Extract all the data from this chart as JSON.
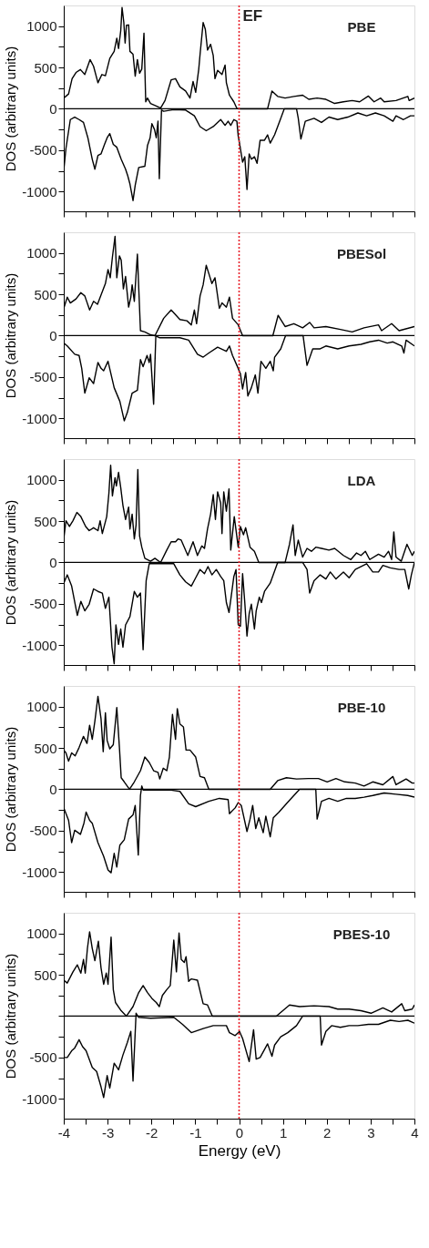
{
  "chart_data": [
    {
      "type": "line",
      "ylabel": "DOS (arbitrary units)",
      "annotations": [
        "PBE"
      ],
      "tick_labels": "y",
      "xlim": [
        -4,
        4
      ],
      "ylim": [
        -1240,
        1250
      ],
      "xticks": [
        {
          "value": -4,
          "label": null
        },
        {
          "value": -3.5,
          "label": null
        },
        {
          "value": -3,
          "label": null
        },
        {
          "value": -2.5,
          "label": null
        },
        {
          "value": -2,
          "label": null
        },
        {
          "value": -1.5,
          "label": null
        },
        {
          "value": -1,
          "label": null
        },
        {
          "value": -0.5,
          "label": null
        },
        {
          "value": 0,
          "label": null
        },
        {
          "value": 0.5,
          "label": null
        },
        {
          "value": 1,
          "label": null
        },
        {
          "value": 1.5,
          "label": null
        },
        {
          "value": 2,
          "label": null
        },
        {
          "value": 2.5,
          "label": null
        },
        {
          "value": 3,
          "label": null
        },
        {
          "value": 3.5,
          "label": null
        },
        {
          "value": 4,
          "label": null
        }
      ],
      "yticks": [
        -1000,
        {
          "value": -750,
          "label": null
        },
        -500,
        {
          "value": -250,
          "label": null
        },
        0,
        {
          "value": 250,
          "label": null
        },
        500,
        {
          "value": 750,
          "label": null
        },
        1000
      ],
      "ref_lines": [
        {
          "axis": "y",
          "value": 0,
          "color": "#000000",
          "line_style": "solid"
        },
        {
          "axis": "x",
          "value": 0,
          "label": "EF",
          "color": "#e8202a",
          "line_style": "dotted"
        }
      ],
      "series": [
        {
          "color": "#000000",
          "x": [
            -4,
            -3.89,
            -3.81,
            -3.72,
            -3.62,
            -3.52,
            -3.4,
            -3.32,
            -3.22,
            -3.13,
            -3.05,
            -2.95,
            -2.85,
            -2.79,
            -2.75,
            -2.7,
            -2.67,
            -2.63,
            -2.6,
            -2.57,
            -2.52,
            -2.49,
            -2.42,
            -2.37,
            -2.32,
            -2.27,
            -2.22,
            -2.17,
            -2.13,
            -2.09,
            -2.02,
            -1.89,
            -1.79,
            -1.69,
            -1.55,
            -1.45,
            -1.35,
            -1.22,
            -1.12,
            -1.05,
            -0.99,
            -0.92,
            -0.89,
            -0.82,
            -0.77,
            -0.72,
            -0.65,
            -0.59,
            -0.55,
            -0.49,
            -0.39,
            -0.32,
            -0.29,
            -0.22,
            -0.12,
            -0.05,
            -0.02,
            0.65,
            0.75,
            0.88,
            1.05,
            1.25,
            1.45,
            1.59,
            1.78,
            1.98,
            2.18,
            2.38,
            2.58,
            2.75,
            2.95,
            3.08,
            3.23,
            3.31,
            3.58,
            3.85,
            3.88,
            4
          ],
          "values": [
            130,
            180,
            365,
            440,
            475,
            415,
            595,
            515,
            315,
            415,
            400,
            610,
            695,
            855,
            730,
            945,
            1225,
            1045,
            795,
            1010,
            1015,
            695,
            660,
            395,
            595,
            430,
            480,
            915,
            85,
            130,
            65,
            35,
            10,
            100,
            350,
            365,
            265,
            215,
            130,
            330,
            200,
            480,
            660,
            1045,
            960,
            710,
            780,
            645,
            365,
            465,
            415,
            530,
            315,
            165,
            85,
            5,
            0,
            0,
            215,
            150,
            130,
            150,
            165,
            115,
            130,
            115,
            65,
            85,
            100,
            85,
            155,
            85,
            130,
            85,
            100,
            150,
            100,
            130
          ]
        },
        {
          "color": "#000000",
          "x": [
            -4,
            -3.95,
            -3.85,
            -3.75,
            -3.65,
            -3.55,
            -3.45,
            -3.35,
            -3.29,
            -3.22,
            -3.15,
            -3.07,
            -3.01,
            -2.95,
            -2.87,
            -2.79,
            -2.69,
            -2.59,
            -2.54,
            -2.49,
            -2.42,
            -2.37,
            -2.29,
            -2.15,
            -2.09,
            -2.03,
            -1.99,
            -1.93,
            -1.89,
            -1.85,
            -1.82,
            -1.77,
            -1.72,
            -1.49,
            -1.22,
            -1.02,
            -0.89,
            -0.75,
            -0.59,
            -0.42,
            -0.32,
            -0.25,
            -0.19,
            -0.12,
            -0.05,
            -0.02,
            0.01,
            0.08,
            0.13,
            0.18,
            0.23,
            0.28,
            0.35,
            0.41,
            0.48,
            0.58,
            0.65,
            0.71,
            0.81,
            0.95,
            1.03,
            1.31,
            1.35,
            1.41,
            1.51,
            1.71,
            1.88,
            2.05,
            2.25,
            2.48,
            2.71,
            2.91,
            3.11,
            3.31,
            3.51,
            3.58,
            3.75,
            3.91,
            4
          ],
          "values": [
            -745,
            -480,
            -130,
            -100,
            -130,
            -165,
            -350,
            -610,
            -730,
            -565,
            -545,
            -430,
            -350,
            -300,
            -430,
            -465,
            -610,
            -730,
            -810,
            -910,
            -1110,
            -925,
            -710,
            -695,
            -445,
            -350,
            -180,
            -250,
            -350,
            -150,
            -845,
            -15,
            -30,
            -10,
            -15,
            -85,
            -215,
            -265,
            -215,
            -130,
            -200,
            -150,
            -200,
            -130,
            -150,
            -330,
            -415,
            -645,
            -580,
            -975,
            -545,
            -610,
            -580,
            -660,
            -380,
            -380,
            -315,
            -415,
            -315,
            -115,
            0,
            0,
            -115,
            -365,
            -150,
            -115,
            -165,
            -100,
            -130,
            -100,
            -50,
            -85,
            -50,
            -85,
            -150,
            -85,
            -130,
            -85,
            -85
          ]
        }
      ]
    },
    {
      "type": "line",
      "ylabel": "DOS (arbitrary units)",
      "annotations": [
        "PBESol"
      ],
      "tick_labels": "y",
      "xlim": [
        -4,
        4
      ],
      "ylim": [
        -1240,
        1250
      ],
      "xticks": [
        {
          "value": -4,
          "label": null
        },
        {
          "value": -3.5,
          "label": null
        },
        {
          "value": -3,
          "label": null
        },
        {
          "value": -2.5,
          "label": null
        },
        {
          "value": -2,
          "label": null
        },
        {
          "value": -1.5,
          "label": null
        },
        {
          "value": -1,
          "label": null
        },
        {
          "value": -0.5,
          "label": null
        },
        {
          "value": 0,
          "label": null
        },
        {
          "value": 0.5,
          "label": null
        },
        {
          "value": 1,
          "label": null
        },
        {
          "value": 1.5,
          "label": null
        },
        {
          "value": 2,
          "label": null
        },
        {
          "value": 2.5,
          "label": null
        },
        {
          "value": 3,
          "label": null
        },
        {
          "value": 3.5,
          "label": null
        },
        {
          "value": 4,
          "label": null
        }
      ],
      "yticks": [
        -1000,
        {
          "value": -750,
          "label": null
        },
        -500,
        {
          "value": -250,
          "label": null
        },
        0,
        {
          "value": 250,
          "label": null
        },
        500,
        {
          "value": 750,
          "label": null
        },
        1000
      ],
      "ref_lines": [
        {
          "axis": "y",
          "value": 0,
          "color": "#000000",
          "line_style": "solid"
        },
        {
          "axis": "x",
          "value": 0,
          "color": "#e8202a",
          "line_style": "dotted"
        }
      ],
      "series": [
        {
          "color": "#000000",
          "x": [
            -4,
            -3.92,
            -3.85,
            -3.72,
            -3.61,
            -3.52,
            -3.41,
            -3.32,
            -3.23,
            -3.05,
            -2.99,
            -2.94,
            -2.89,
            -2.83,
            -2.79,
            -2.73,
            -2.69,
            -2.64,
            -2.59,
            -2.52,
            -2.47,
            -2.44,
            -2.39,
            -2.32,
            -2.25,
            -2.15,
            -2.02,
            -1.92,
            -1.72,
            -1.55,
            -1.35,
            -1.19,
            -1.09,
            -1.02,
            -0.97,
            -0.89,
            -0.82,
            -0.75,
            -0.69,
            -0.62,
            -0.55,
            -0.45,
            -0.39,
            -0.29,
            -0.22,
            -0.15,
            -0.02,
            0.08,
            0.77,
            0.89,
            1.05,
            1.25,
            1.45,
            1.61,
            1.71,
            1.98,
            2.31,
            2.58,
            2.85,
            3.18,
            3.25,
            3.48,
            3.65,
            4
          ],
          "values": [
            330,
            465,
            395,
            445,
            520,
            480,
            310,
            415,
            380,
            630,
            800,
            700,
            950,
            1200,
            700,
            965,
            915,
            565,
            715,
            345,
            465,
            615,
            415,
            985,
            60,
            45,
            10,
            0,
            210,
            310,
            195,
            180,
            130,
            310,
            145,
            480,
            615,
            850,
            750,
            630,
            700,
            330,
            395,
            345,
            465,
            210,
            130,
            0,
            0,
            245,
            110,
            145,
            95,
            160,
            95,
            110,
            75,
            45,
            95,
            130,
            60,
            145,
            60,
            110
          ]
        },
        {
          "color": "#000000",
          "x": [
            -4,
            -3.92,
            -3.75,
            -3.65,
            -3.59,
            -3.52,
            -3.42,
            -3.32,
            -3.22,
            -3.15,
            -3.09,
            -2.99,
            -2.85,
            -2.72,
            -2.62,
            -2.55,
            -2.44,
            -2.32,
            -2.25,
            -2.19,
            -2.1,
            -2.05,
            -2.02,
            -1.95,
            -1.9,
            -1.82,
            -1.35,
            -1.15,
            -0.95,
            -0.82,
            -0.69,
            -0.49,
            -0.29,
            -0.22,
            -0.15,
            -0.05,
            0.03,
            0.08,
            0.15,
            0.2,
            0.28,
            0.37,
            0.43,
            0.5,
            0.61,
            0.71,
            0.78,
            0.81,
            0.95,
            1.06,
            1.46,
            1.55,
            1.68,
            1.85,
            1.98,
            2.25,
            2.51,
            2.78,
            2.98,
            3.18,
            3.38,
            3.51,
            3.71,
            3.76,
            3.81,
            4
          ],
          "values": [
            -90,
            -125,
            -225,
            -240,
            -395,
            -695,
            -510,
            -580,
            -325,
            -395,
            -425,
            -310,
            -630,
            -795,
            -1030,
            -930,
            -695,
            -660,
            -290,
            -375,
            -240,
            -325,
            -225,
            -830,
            -5,
            -25,
            -25,
            -55,
            -225,
            -260,
            -210,
            -140,
            -190,
            -125,
            -240,
            -360,
            -460,
            -645,
            -445,
            -730,
            -630,
            -475,
            -695,
            -310,
            -395,
            -310,
            -425,
            -260,
            -160,
            0,
            0,
            -360,
            -160,
            -160,
            -125,
            -160,
            -125,
            -105,
            -75,
            -55,
            -90,
            -75,
            -125,
            -210,
            -55,
            -125
          ]
        }
      ]
    },
    {
      "type": "line",
      "ylabel": "DOS (arbitrary units)",
      "annotations": [
        "LDA"
      ],
      "tick_labels": "y",
      "xlim": [
        -4,
        4
      ],
      "ylim": [
        -1240,
        1250
      ],
      "xticks": [
        {
          "value": -4,
          "label": null
        },
        {
          "value": -3.5,
          "label": null
        },
        {
          "value": -3,
          "label": null
        },
        {
          "value": -2.5,
          "label": null
        },
        {
          "value": -2,
          "label": null
        },
        {
          "value": -1.5,
          "label": null
        },
        {
          "value": -1,
          "label": null
        },
        {
          "value": -0.5,
          "label": null
        },
        {
          "value": 0,
          "label": null
        },
        {
          "value": 0.5,
          "label": null
        },
        {
          "value": 1,
          "label": null
        },
        {
          "value": 1.5,
          "label": null
        },
        {
          "value": 2,
          "label": null
        },
        {
          "value": 2.5,
          "label": null
        },
        {
          "value": 3,
          "label": null
        },
        {
          "value": 3.5,
          "label": null
        },
        {
          "value": 4,
          "label": null
        }
      ],
      "yticks": [
        -1000,
        {
          "value": -750,
          "label": null
        },
        -500,
        {
          "value": -250,
          "label": null
        },
        0,
        {
          "value": 250,
          "label": null
        },
        500,
        {
          "value": 750,
          "label": null
        },
        1000
      ],
      "ref_lines": [
        {
          "axis": "y",
          "value": 0,
          "color": "#000000",
          "line_style": "solid"
        },
        {
          "axis": "x",
          "value": 0,
          "color": "#e8202a",
          "line_style": "dotted"
        }
      ],
      "series": [
        {
          "color": "#000000",
          "x": [
            -4,
            -3.95,
            -3.87,
            -3.79,
            -3.7,
            -3.61,
            -3.5,
            -3.42,
            -3.32,
            -3.22,
            -3.17,
            -3.12,
            -3.02,
            -2.97,
            -2.93,
            -2.89,
            -2.83,
            -2.8,
            -2.75,
            -2.7,
            -2.65,
            -2.59,
            -2.52,
            -2.49,
            -2.44,
            -2.39,
            -2.35,
            -2.31,
            -2.27,
            -2.22,
            -2.15,
            -2.02,
            -1.92,
            -1.79,
            -1.65,
            -1.55,
            -1.45,
            -1.39,
            -1.32,
            -1.25,
            -1.17,
            -1.05,
            -0.95,
            -0.85,
            -0.79,
            -0.72,
            -0.65,
            -0.59,
            -0.54,
            -0.49,
            -0.42,
            -0.39,
            -0.35,
            -0.29,
            -0.23,
            -0.19,
            -0.11,
            -0.02,
            0.03,
            0.1,
            0.15,
            0.25,
            0.35,
            0.45,
            1.05,
            1.15,
            1.23,
            1.28,
            1.35,
            1.45,
            1.55,
            1.65,
            1.75,
            1.88,
            2.05,
            2.18,
            2.38,
            2.55,
            2.68,
            2.78,
            2.88,
            2.98,
            3.18,
            3.31,
            3.41,
            3.48,
            3.53,
            3.58,
            3.7,
            3.83,
            3.95,
            4
          ],
          "values": [
            285,
            505,
            435,
            505,
            605,
            555,
            435,
            385,
            420,
            385,
            505,
            350,
            555,
            840,
            1175,
            805,
            1025,
            925,
            1090,
            905,
            690,
            520,
            670,
            405,
            585,
            285,
            455,
            1125,
            320,
            185,
            50,
            15,
            50,
            0,
            150,
            250,
            250,
            285,
            270,
            185,
            85,
            250,
            85,
            200,
            170,
            405,
            585,
            820,
            520,
            855,
            720,
            350,
            855,
            620,
            890,
            150,
            555,
            185,
            435,
            335,
            420,
            185,
            135,
            0,
            0,
            220,
            455,
            85,
            270,
            65,
            170,
            135,
            185,
            170,
            150,
            170,
            85,
            35,
            115,
            85,
            135,
            35,
            100,
            65,
            135,
            35,
            370,
            65,
            15,
            220,
            85,
            135
          ]
        },
        {
          "color": "#000000",
          "x": [
            -4,
            -3.92,
            -3.82,
            -3.69,
            -3.61,
            -3.52,
            -3.42,
            -3.32,
            -3.22,
            -3.12,
            -3.05,
            -2.97,
            -2.9,
            -2.85,
            -2.81,
            -2.75,
            -2.7,
            -2.65,
            -2.59,
            -2.49,
            -2.39,
            -2.32,
            -2.25,
            -2.19,
            -2.12,
            -2.05,
            -1.89,
            -1.49,
            -1.35,
            -1.22,
            -1.09,
            -0.99,
            -0.89,
            -0.79,
            -0.71,
            -0.62,
            -0.52,
            -0.42,
            -0.35,
            -0.29,
            -0.23,
            -0.19,
            -0.12,
            -0.07,
            -0.02,
            0.03,
            0.08,
            0.13,
            0.18,
            0.23,
            0.28,
            0.35,
            0.39,
            0.46,
            0.51,
            0.58,
            0.71,
            0.88,
            1.45,
            1.55,
            1.61,
            1.71,
            1.85,
            1.98,
            2.08,
            2.21,
            2.38,
            2.51,
            2.65,
            2.91,
            3.05,
            3.18,
            3.28,
            3.45,
            3.65,
            3.78,
            3.87,
            3.93,
            4
          ],
          "values": [
            -250,
            -150,
            -285,
            -640,
            -470,
            -585,
            -505,
            -320,
            -350,
            -370,
            -555,
            -420,
            -1025,
            -1225,
            -755,
            -990,
            -805,
            -1025,
            -755,
            -655,
            -350,
            -420,
            -370,
            -1055,
            -220,
            -15,
            -15,
            -15,
            -150,
            -235,
            -285,
            -185,
            -85,
            -135,
            -50,
            -150,
            -85,
            -170,
            -220,
            -485,
            -605,
            -450,
            -170,
            -85,
            -755,
            -770,
            -135,
            -485,
            -890,
            -620,
            -505,
            -805,
            -585,
            -420,
            -485,
            -350,
            -250,
            0,
            0,
            -85,
            -370,
            -220,
            -150,
            -200,
            -115,
            -200,
            -115,
            -185,
            -85,
            -15,
            -115,
            -115,
            -35,
            -65,
            -85,
            -85,
            -320,
            -150,
            0
          ]
        }
      ]
    },
    {
      "type": "line",
      "ylabel": "DOS (arbitrary units)",
      "annotations": [
        "PBE-10"
      ],
      "tick_labels": "y",
      "xlim": [
        -4,
        4
      ],
      "ylim": [
        -1240,
        1250
      ],
      "xticks": [
        {
          "value": -4,
          "label": null
        },
        {
          "value": -3.5,
          "label": null
        },
        {
          "value": -3,
          "label": null
        },
        {
          "value": -2.5,
          "label": null
        },
        {
          "value": -2,
          "label": null
        },
        {
          "value": -1.5,
          "label": null
        },
        {
          "value": -1,
          "label": null
        },
        {
          "value": -0.5,
          "label": null
        },
        {
          "value": 0,
          "label": null
        },
        {
          "value": 0.5,
          "label": null
        },
        {
          "value": 1,
          "label": null
        },
        {
          "value": 1.5,
          "label": null
        },
        {
          "value": 2,
          "label": null
        },
        {
          "value": 2.5,
          "label": null
        },
        {
          "value": 3,
          "label": null
        },
        {
          "value": 3.5,
          "label": null
        },
        {
          "value": 4,
          "label": null
        }
      ],
      "yticks": [
        -1000,
        {
          "value": -750,
          "label": null
        },
        -500,
        {
          "value": -250,
          "label": null
        },
        0,
        {
          "value": 250,
          "label": null
        },
        500,
        {
          "value": 750,
          "label": null
        },
        1000
      ],
      "ref_lines": [
        {
          "axis": "y",
          "value": 0,
          "color": "#000000",
          "line_style": "solid"
        },
        {
          "axis": "x",
          "value": 0,
          "color": "#e8202a",
          "line_style": "dotted"
        }
      ],
      "series": [
        {
          "color": "#000000",
          "x": [
            -4,
            -3.95,
            -3.89,
            -3.82,
            -3.74,
            -3.65,
            -3.55,
            -3.47,
            -3.41,
            -3.35,
            -3.29,
            -3.22,
            -3.15,
            -3.1,
            -3.05,
            -3.01,
            -2.95,
            -2.87,
            -2.79,
            -2.73,
            -2.69,
            -2.62,
            -2.5,
            -2.39,
            -2.25,
            -2.15,
            -2.05,
            -1.95,
            -1.85,
            -1.81,
            -1.73,
            -1.65,
            -1.59,
            -1.52,
            -1.45,
            -1.41,
            -1.35,
            -1.27,
            -1.21,
            -1.12,
            -0.99,
            -0.89,
            -0.79,
            -0.69,
            0.71,
            0.88,
            1.08,
            1.31,
            1.58,
            1.81,
            2.01,
            2.21,
            2.41,
            2.65,
            2.85,
            3.05,
            3.28,
            3.51,
            3.58,
            3.81,
            3.95,
            4
          ],
          "values": [
            475,
            440,
            340,
            440,
            405,
            505,
            640,
            555,
            775,
            605,
            825,
            1125,
            855,
            455,
            925,
            590,
            490,
            540,
            990,
            505,
            140,
            90,
            0,
            90,
            225,
            390,
            325,
            225,
            205,
            125,
            255,
            225,
            390,
            905,
            605,
            975,
            790,
            755,
            475,
            475,
            390,
            155,
            140,
            0,
            0,
            105,
            140,
            125,
            130,
            130,
            90,
            130,
            90,
            75,
            40,
            90,
            55,
            155,
            55,
            125,
            75,
            75
          ]
        },
        {
          "color": "#000000",
          "x": [
            -4,
            -3.89,
            -3.82,
            -3.75,
            -3.62,
            -3.54,
            -3.49,
            -3.41,
            -3.35,
            -3.22,
            -3.09,
            -2.99,
            -2.92,
            -2.85,
            -2.79,
            -2.72,
            -2.62,
            -2.52,
            -2.42,
            -2.37,
            -2.3,
            -2.25,
            -2.22,
            -2.19,
            -2.02,
            -1.55,
            -1.35,
            -1.15,
            -0.99,
            -0.69,
            -0.45,
            -0.25,
            -0.22,
            -0.09,
            -0.02,
            0.05,
            0.18,
            0.25,
            0.31,
            0.38,
            0.45,
            0.55,
            0.61,
            0.71,
            0.78,
            0.91,
            1.08,
            1.25,
            1.38,
            1.75,
            1.78,
            1.88,
            2.05,
            2.25,
            2.45,
            2.65,
            2.85,
            3.05,
            3.31,
            3.58,
            3.85,
            4
          ],
          "values": [
            -225,
            -375,
            -645,
            -495,
            -545,
            -410,
            -275,
            -375,
            -410,
            -645,
            -810,
            -975,
            -1010,
            -775,
            -940,
            -675,
            -610,
            -360,
            -310,
            -195,
            -795,
            -75,
            40,
            -10,
            -10,
            -10,
            -25,
            -175,
            -210,
            -145,
            -110,
            -125,
            -295,
            -225,
            -160,
            -195,
            -510,
            -360,
            -195,
            -475,
            -345,
            -525,
            -325,
            -575,
            -345,
            -275,
            -175,
            -75,
            0,
            0,
            -360,
            -145,
            -110,
            -145,
            -110,
            -110,
            -95,
            -75,
            -45,
            -60,
            -75,
            -95
          ]
        }
      ]
    },
    {
      "type": "line",
      "xlabel": "Energy (eV)",
      "ylabel": "DOS (arbitrary units)",
      "annotations": [
        "PBES-10"
      ],
      "xlim": [
        -4,
        4
      ],
      "ylim": [
        -1240,
        1250
      ],
      "xticks": [
        -4,
        {
          "value": -3.5,
          "label": null
        },
        -3,
        {
          "value": -2.5,
          "label": null
        },
        -2,
        {
          "value": -1.5,
          "label": null
        },
        -1,
        {
          "value": -0.5,
          "label": null
        },
        0,
        {
          "value": 0.5,
          "label": null
        },
        1,
        {
          "value": 1.5,
          "label": null
        },
        2,
        {
          "value": 2.5,
          "label": null
        },
        3,
        {
          "value": 3.5,
          "label": null
        },
        4
      ],
      "yticks": [
        -1000,
        {
          "value": -750,
          "label": null
        },
        -500,
        {
          "value": -250,
          "label": null
        },
        {
          "value": 0,
          "label": null
        },
        {
          "value": 250,
          "label": null
        },
        500,
        {
          "value": 750,
          "label": null
        },
        1000
      ],
      "ref_lines": [
        {
          "axis": "y",
          "value": 0,
          "color": "#000000",
          "line_style": "solid"
        },
        {
          "axis": "x",
          "value": 0,
          "color": "#e8202a",
          "line_style": "dotted"
        }
      ],
      "series": [
        {
          "color": "#000000",
          "x": [
            -4,
            -3.92,
            -3.79,
            -3.69,
            -3.61,
            -3.55,
            -3.51,
            -3.46,
            -3.41,
            -3.35,
            -3.29,
            -3.21,
            -3.15,
            -3.09,
            -3.03,
            -2.99,
            -2.92,
            -2.87,
            -2.82,
            -2.69,
            -2.57,
            -2.42,
            -2.29,
            -2.19,
            -2.09,
            -1.99,
            -1.89,
            -1.82,
            -1.75,
            -1.65,
            -1.57,
            -1.49,
            -1.43,
            -1.37,
            -1.32,
            -1.25,
            -1.21,
            -1.15,
            -1.09,
            -0.95,
            -0.82,
            -0.72,
            -0.61,
            0.85,
            1.15,
            1.38,
            1.71,
            2.05,
            2.25,
            2.51,
            2.78,
            3.01,
            3.28,
            3.48,
            3.71,
            3.78,
            3.95,
            4
          ],
          "values": [
            435,
            400,
            535,
            620,
            520,
            685,
            520,
            820,
            1020,
            820,
            670,
            905,
            585,
            385,
            520,
            385,
            955,
            320,
            165,
            65,
            0,
            115,
            285,
            370,
            285,
            215,
            165,
            115,
            250,
            320,
            370,
            920,
            535,
            1005,
            685,
            650,
            720,
            420,
            450,
            435,
            150,
            135,
            0,
            0,
            135,
            115,
            125,
            115,
            85,
            85,
            65,
            35,
            100,
            50,
            150,
            65,
            85,
            135
          ]
        },
        {
          "color": "#000000",
          "x": [
            -4,
            -3.92,
            -3.82,
            -3.75,
            -3.65,
            -3.57,
            -3.49,
            -3.35,
            -3.25,
            -3.15,
            -3.09,
            -3.01,
            -2.95,
            -2.85,
            -2.75,
            -2.65,
            -2.55,
            -2.47,
            -2.42,
            -2.35,
            -2.29,
            -2.02,
            -1.49,
            -1.29,
            -1.09,
            -0.82,
            -0.59,
            -0.29,
            -0.22,
            -0.09,
            0.01,
            0.08,
            0.23,
            0.33,
            0.39,
            0.48,
            0.65,
            0.75,
            0.81,
            0.95,
            1.11,
            1.31,
            1.45,
            1.85,
            1.88,
            1.98,
            2.11,
            2.31,
            2.51,
            2.71,
            2.95,
            3.18,
            3.45,
            3.65,
            3.85,
            4
          ],
          "values": [
            -500,
            -500,
            -420,
            -385,
            -285,
            -370,
            -420,
            -620,
            -670,
            -855,
            -985,
            -720,
            -870,
            -570,
            -650,
            -470,
            -320,
            -185,
            -785,
            35,
            -15,
            -25,
            -15,
            -100,
            -200,
            -150,
            -115,
            -115,
            -200,
            -235,
            -185,
            -270,
            -550,
            -165,
            -520,
            -500,
            -335,
            -485,
            -350,
            -250,
            -200,
            -115,
            0,
            0,
            -350,
            -185,
            -115,
            -135,
            -115,
            -115,
            -100,
            -100,
            -50,
            -65,
            -50,
            -85
          ]
        }
      ]
    }
  ]
}
